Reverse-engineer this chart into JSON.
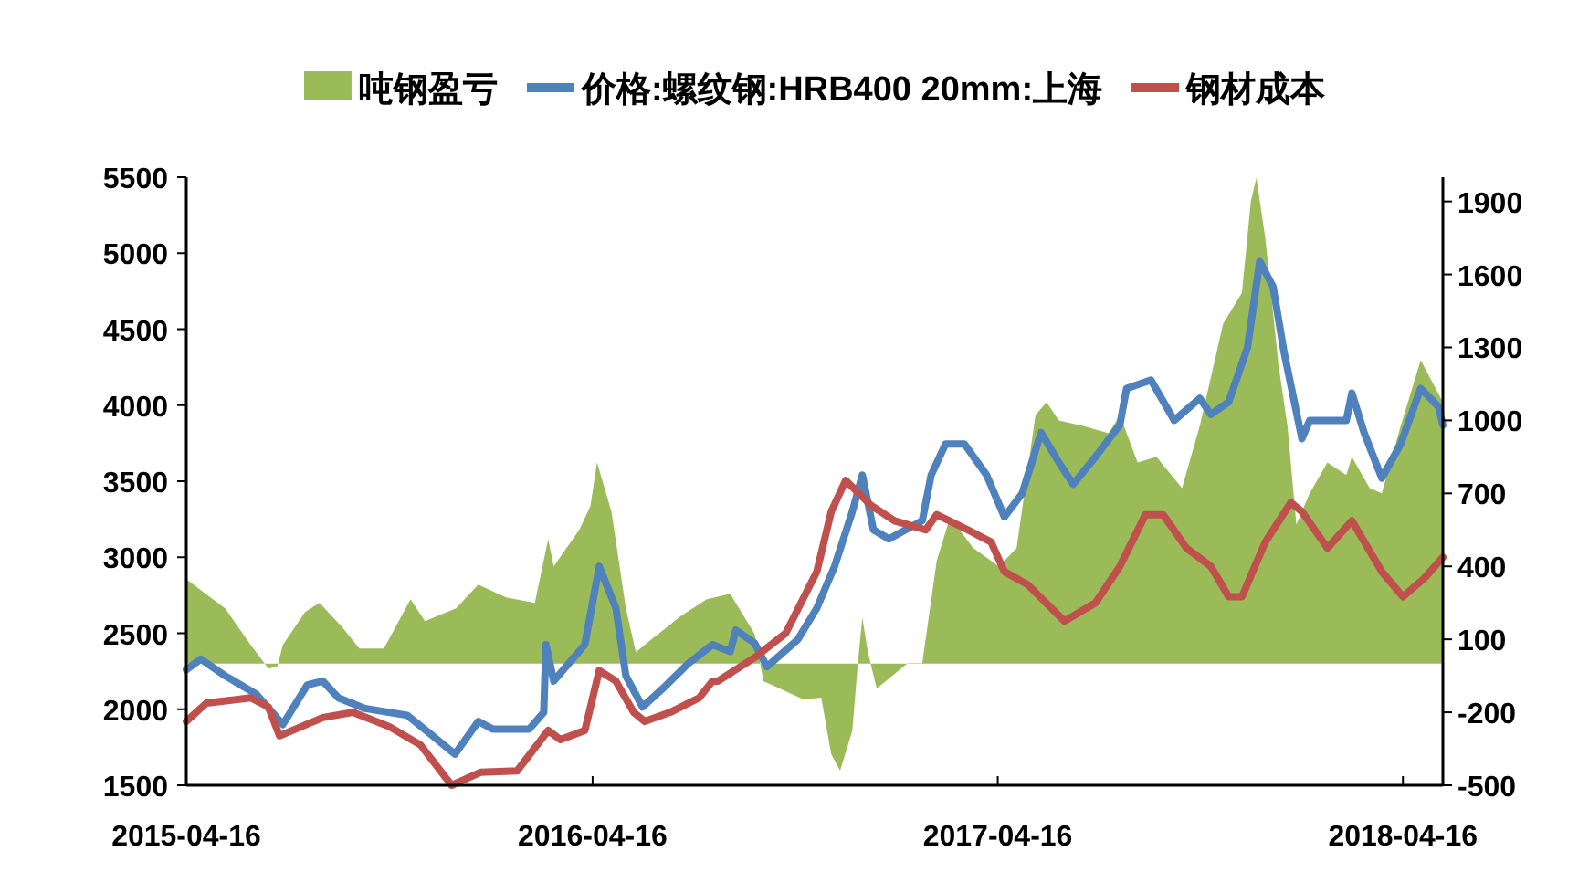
{
  "chart_data": {
    "type": "line",
    "xlim": [
      "2015-04-16",
      "2018-05-22"
    ],
    "xticks": [
      "2015-04-16",
      "2016-04-16",
      "2017-04-16",
      "2018-04-16"
    ],
    "ylim": [
      1500,
      5500
    ],
    "yticks": [
      1500,
      2000,
      2500,
      3000,
      3500,
      4000,
      4500,
      5000,
      5500
    ],
    "y2lim": [
      -500,
      2000
    ],
    "y2ticks": [
      -500,
      -200,
      100,
      400,
      700,
      1000,
      1300,
      1600,
      1900
    ],
    "legend": "top",
    "grid": false,
    "series": [
      {
        "name": "吨钢盈亏",
        "type": "area",
        "axis": "y2",
        "color": "#9bbb59",
        "x": [
          "2015-04-16",
          "2015-04-29",
          "2015-05-21",
          "2015-06-13",
          "2015-06-29",
          "2015-07-07",
          "2015-07-12",
          "2015-08-01",
          "2015-08-14",
          "2015-09-03",
          "2015-09-19",
          "2015-10-11",
          "2015-11-04",
          "2015-11-17",
          "2015-12-15",
          "2016-01-04",
          "2016-01-29",
          "2016-02-24",
          "2016-03-07",
          "2016-03-12",
          "2016-04-04",
          "2016-04-14",
          "2016-04-20",
          "2016-05-03",
          "2016-05-16",
          "2016-05-25",
          "2016-06-08",
          "2016-07-05",
          "2016-07-28",
          "2016-08-18",
          "2016-09-09",
          "2016-09-17",
          "2016-10-23",
          "2016-11-08",
          "2016-11-17",
          "2016-11-25",
          "2016-12-06",
          "2016-12-11",
          "2016-12-15",
          "2016-12-20",
          "2016-12-28",
          "2017-01-25",
          "2017-02-07",
          "2017-02-20",
          "2017-03-04",
          "2017-03-25",
          "2017-04-17",
          "2017-05-03",
          "2017-05-20",
          "2017-05-30",
          "2017-06-10",
          "2017-07-02",
          "2017-07-25",
          "2017-08-04",
          "2017-08-20",
          "2017-09-06",
          "2017-09-29",
          "2017-10-15",
          "2017-11-05",
          "2017-11-22",
          "2017-11-30",
          "2017-12-05",
          "2017-12-13",
          "2017-12-25",
          "2018-01-02",
          "2018-01-10",
          "2018-01-22",
          "2018-02-07",
          "2018-02-24",
          "2018-03-01",
          "2018-03-17",
          "2018-03-28",
          "2018-04-14",
          "2018-05-02",
          "2018-05-22"
        ],
        "values": [
          347,
          302,
          227,
          77,
          -20,
          -12,
          77,
          212,
          250,
          152,
          62,
          62,
          265,
          175,
          227,
          325,
          272,
          250,
          512,
          400,
          550,
          647,
          827,
          625,
          227,
          47,
          100,
          197,
          265,
          287,
          122,
          -72,
          -147,
          -140,
          -372,
          -440,
          -275,
          2,
          190,
          47,
          -102,
          2,
          2,
          422,
          602,
          475,
          400,
          475,
          1022,
          1075,
          1000,
          977,
          947,
          1022,
          827,
          850,
          722,
          977,
          1397,
          1525,
          1900,
          1997,
          1750,
          1225,
          977,
          572,
          700,
          827,
          775,
          850,
          722,
          700,
          977,
          1247,
          1075
        ]
      },
      {
        "name": "价格:螺纹钢:HRB400 20mm:上海",
        "color": "#4f81bd",
        "x": [
          "2015-04-16",
          "2015-04-29",
          "2015-05-21",
          "2015-06-18",
          "2015-07-12",
          "2015-08-03",
          "2015-08-17",
          "2015-08-31",
          "2015-09-24",
          "2015-11-01",
          "2015-11-24",
          "2015-12-14",
          "2016-01-04",
          "2016-01-17",
          "2016-02-19",
          "2016-03-03",
          "2016-03-05",
          "2016-03-12",
          "2016-04-09",
          "2016-04-22",
          "2016-05-07",
          "2016-05-16",
          "2016-05-31",
          "2016-06-18",
          "2016-07-11",
          "2016-08-02",
          "2016-08-18",
          "2016-08-23",
          "2016-09-09",
          "2016-09-20",
          "2016-10-18",
          "2016-11-04",
          "2016-11-20",
          "2016-12-06",
          "2016-12-15",
          "2016-12-25",
          "2017-01-08",
          "2017-02-07",
          "2017-02-15",
          "2017-02-28",
          "2017-03-17",
          "2017-04-06",
          "2017-04-22",
          "2017-05-08",
          "2017-05-25",
          "2017-06-10",
          "2017-06-23",
          "2017-07-13",
          "2017-08-04",
          "2017-08-10",
          "2017-09-01",
          "2017-09-22",
          "2017-10-15",
          "2017-10-25",
          "2017-11-10",
          "2017-11-27",
          "2017-12-08",
          "2017-12-20",
          "2017-12-30",
          "2018-01-15",
          "2018-01-22",
          "2018-02-24",
          "2018-03-01",
          "2018-03-12",
          "2018-03-28",
          "2018-04-14",
          "2018-05-02",
          "2018-05-18",
          "2018-05-22"
        ],
        "values": [
          2260,
          2330,
          2220,
          2100,
          1900,
          2160,
          2185,
          2075,
          2005,
          1960,
          1825,
          1705,
          1920,
          1870,
          1870,
          1980,
          2425,
          2185,
          2425,
          2940,
          2665,
          2220,
          2015,
          2135,
          2300,
          2425,
          2380,
          2520,
          2435,
          2280,
          2460,
          2665,
          2940,
          3300,
          3540,
          3180,
          3120,
          3240,
          3540,
          3745,
          3745,
          3540,
          3265,
          3420,
          3820,
          3625,
          3480,
          3660,
          3870,
          4110,
          4165,
          3900,
          4045,
          3940,
          4020,
          4380,
          4945,
          4780,
          4345,
          3780,
          3900,
          3900,
          4080,
          3820,
          3520,
          3745,
          4110,
          3990,
          3870
        ]
      },
      {
        "name": "钢材成本",
        "color": "#c0504d",
        "x": [
          "2015-04-16",
          "2015-05-04",
          "2015-06-13",
          "2015-06-29",
          "2015-07-09",
          "2015-08-17",
          "2015-09-13",
          "2015-10-16",
          "2015-11-13",
          "2015-12-11",
          "2016-01-06",
          "2016-02-08",
          "2016-03-07",
          "2016-03-18",
          "2016-04-09",
          "2016-04-22",
          "2016-05-07",
          "2016-05-23",
          "2016-06-02",
          "2016-06-25",
          "2016-07-21",
          "2016-08-02",
          "2016-08-07",
          "2016-09-09",
          "2016-10-07",
          "2016-11-04",
          "2016-11-17",
          "2016-11-30",
          "2016-12-23",
          "2017-01-13",
          "2017-02-10",
          "2017-02-20",
          "2017-03-20",
          "2017-04-10",
          "2017-04-22",
          "2017-05-13",
          "2017-06-15",
          "2017-07-13",
          "2017-08-04",
          "2017-08-27",
          "2017-09-12",
          "2017-10-03",
          "2017-10-25",
          "2017-11-10",
          "2017-11-22",
          "2017-12-13",
          "2018-01-05",
          "2018-01-15",
          "2018-02-07",
          "2018-03-01",
          "2018-03-28",
          "2018-04-16",
          "2018-05-05",
          "2018-05-22"
        ],
        "values": [
          1920,
          2040,
          2075,
          2015,
          1825,
          1945,
          1980,
          1885,
          1765,
          1500,
          1585,
          1595,
          1860,
          1800,
          1860,
          2255,
          2185,
          1980,
          1920,
          1980,
          2075,
          2185,
          2185,
          2340,
          2500,
          2905,
          3300,
          3505,
          3340,
          3240,
          3180,
          3280,
          3180,
          3100,
          2905,
          2820,
          2580,
          2700,
          2940,
          3280,
          3280,
          3060,
          2940,
          2740,
          2740,
          3100,
          3360,
          3300,
          3060,
          3240,
          2905,
          2740,
          2860,
          3000
        ]
      }
    ]
  }
}
